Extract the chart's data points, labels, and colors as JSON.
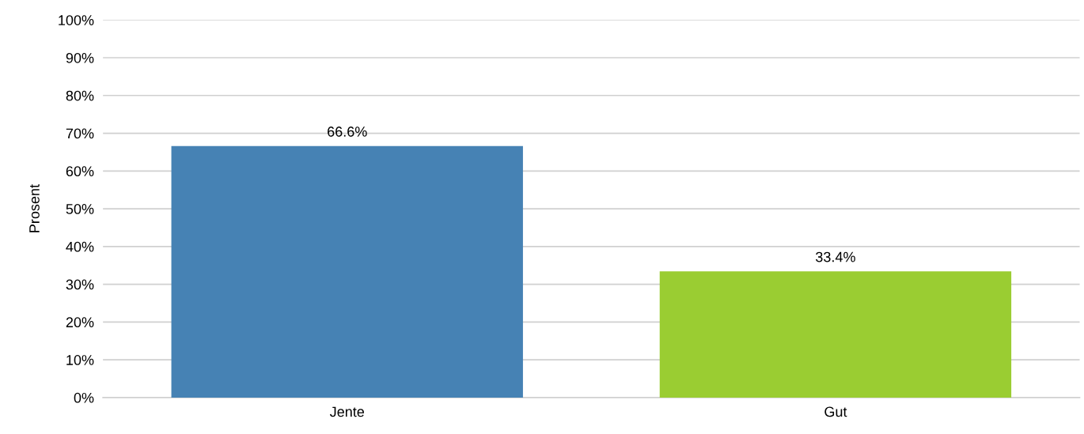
{
  "chart_data": {
    "type": "bar",
    "ylabel": "Prosent",
    "categories": [
      "Jente",
      "Gut"
    ],
    "values": [
      66.6,
      33.4
    ],
    "colors": [
      "#4682b4",
      "#9acd32"
    ],
    "value_labels": [
      "66.6%",
      "33.4%"
    ],
    "ylim": [
      0,
      100
    ],
    "yticks": [
      {
        "value": 0,
        "label": "0%"
      },
      {
        "value": 10,
        "label": "10%"
      },
      {
        "value": 20,
        "label": "20%"
      },
      {
        "value": 30,
        "label": "30%"
      },
      {
        "value": 40,
        "label": "40%"
      },
      {
        "value": 50,
        "label": "50%"
      },
      {
        "value": 60,
        "label": "60%"
      },
      {
        "value": 70,
        "label": "70%"
      },
      {
        "value": 80,
        "label": "80%"
      },
      {
        "value": 90,
        "label": "90%"
      },
      {
        "value": 100,
        "label": "100%"
      }
    ],
    "grid": "y",
    "legend": false
  }
}
